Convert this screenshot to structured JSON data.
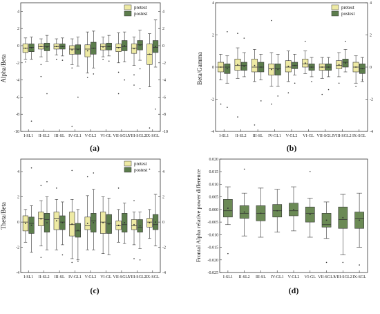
{
  "colors": {
    "pretest": "#eeeaa4",
    "postest": "#5c7d4c",
    "single": "#6b8a55",
    "frame": "#333333",
    "median": "#333333"
  },
  "chart_data": [
    {
      "type": "box",
      "panel_label": "(a)",
      "ylabel": "Alpha/Beta",
      "ylim": [
        -10,
        5
      ],
      "yticks": [
        4,
        2,
        0,
        -2,
        -4,
        -6,
        -8,
        -10
      ],
      "right_axis": true,
      "legend": [
        "pretest",
        "postest"
      ],
      "categories": [
        "I-SL1",
        "II-SL2",
        "III-SL",
        "IV-GL1",
        "V-GL2",
        "VI-GL",
        "VII-SGL1",
        "VIII-SGL2",
        "IX-SGL"
      ],
      "series": [
        {
          "name": "pretest",
          "boxes": [
            {
              "lo": -1.6,
              "q1": -0.8,
              "med": -0.3,
              "q3": 0.2,
              "hi": 0.9,
              "out": [
                -1.9
              ]
            },
            {
              "lo": -1.3,
              "q1": -0.4,
              "med": -0.1,
              "q3": 0.2,
              "hi": 0.8,
              "out": [
                -2.2,
                -3.6
              ]
            },
            {
              "lo": -1.1,
              "q1": -0.4,
              "med": -0.1,
              "q3": 0.2,
              "hi": 0.8,
              "out": [
                -1.6
              ]
            },
            {
              "lo": -2.2,
              "q1": -1.0,
              "med": -0.4,
              "q3": 0.0,
              "hi": 0.8,
              "out": [
                -2.6,
                -9.4
              ]
            },
            {
              "lo": -3.2,
              "q1": -1.3,
              "med": -0.4,
              "q3": 0.1,
              "hi": 1.6,
              "out": [
                -3.7
              ]
            },
            {
              "lo": -1.3,
              "q1": -0.5,
              "med": -0.1,
              "q3": 0.2,
              "hi": 1.0,
              "out": [
                -1.6
              ]
            },
            {
              "lo": -2.0,
              "q1": -0.7,
              "med": -0.2,
              "q3": 0.2,
              "hi": 1.5,
              "out": [
                -3.1,
                -5.6
              ]
            },
            {
              "lo": -2.3,
              "q1": -0.9,
              "med": -0.3,
              "q3": 0.2,
              "hi": 1.0,
              "out": [
                -3.4,
                -4.6
              ]
            },
            {
              "lo": -4.8,
              "q1": -2.2,
              "med": -1.0,
              "q3": 0.2,
              "hi": 1.4,
              "out": [
                -9.6
              ]
            }
          ]
        },
        {
          "name": "postest",
          "boxes": [
            {
              "lo": -1.6,
              "q1": -0.7,
              "med": -0.2,
              "q3": 0.2,
              "hi": 1.0,
              "out": [
                -8.8
              ]
            },
            {
              "lo": -1.8,
              "q1": -0.6,
              "med": -0.1,
              "q3": 0.3,
              "hi": 1.2,
              "out": [
                -5.6
              ]
            },
            {
              "lo": -1.2,
              "q1": -0.4,
              "med": -0.1,
              "q3": 0.2,
              "hi": 0.9,
              "out": [
                -1.7
              ]
            },
            {
              "lo": -2.4,
              "q1": -1.0,
              "med": -0.4,
              "q3": 0.1,
              "hi": 1.0,
              "out": [
                -6.0
              ]
            },
            {
              "lo": -2.6,
              "q1": -1.0,
              "med": -0.3,
              "q3": 0.4,
              "hi": 1.7,
              "out": [
                -3.3
              ]
            },
            {
              "lo": -1.2,
              "q1": -0.5,
              "med": -0.1,
              "q3": 0.3,
              "hi": 1.2,
              "out": [
                -1.8
              ]
            },
            {
              "lo": -1.9,
              "q1": -0.6,
              "med": -0.1,
              "q3": 0.6,
              "hi": 1.6,
              "out": [
                -4.0
              ]
            },
            {
              "lo": -1.7,
              "q1": -0.5,
              "med": 0.1,
              "q3": 0.6,
              "hi": 1.8,
              "out": [
                -2.7,
                -5.0
              ]
            },
            {
              "lo": -2.5,
              "q1": -0.8,
              "med": -0.2,
              "q3": 0.6,
              "hi": 3.0,
              "out": [
                -7.4
              ]
            }
          ]
        }
      ]
    },
    {
      "type": "box",
      "panel_label": "(b)",
      "ylabel": "Beta/Gamma",
      "ylim": [
        -4,
        4
      ],
      "yticks": [
        4,
        2,
        0,
        -2,
        -4
      ],
      "right_axis": true,
      "legend": [
        "pretest",
        "postest"
      ],
      "categories": [
        "I-SL1",
        "II-SL2",
        "III-SL",
        "IV-GL1",
        "V-GL2",
        "VI-GL",
        "VII-SGL1",
        "VIII-SGL2",
        "IX-SGL"
      ],
      "series": [
        {
          "name": "pretest",
          "boxes": [
            {
              "lo": -0.8,
              "q1": -0.3,
              "med": 0.0,
              "q3": 0.3,
              "hi": 0.8,
              "out": [
                -2.3
              ]
            },
            {
              "lo": -0.7,
              "q1": -0.2,
              "med": 0.1,
              "q3": 0.5,
              "hi": 1.2,
              "out": [
                2.1,
                -3.1
              ]
            },
            {
              "lo": -0.9,
              "q1": -0.3,
              "med": 0.0,
              "q3": 0.5,
              "hi": 1.1,
              "out": [
                -3.6
              ]
            },
            {
              "lo": -1.2,
              "q1": -0.5,
              "med": -0.1,
              "q3": 0.2,
              "hi": 0.9,
              "out": [
                2.9,
                -2.3
              ]
            },
            {
              "lo": -0.9,
              "q1": -0.3,
              "med": 0.0,
              "q3": 0.4,
              "hi": 1.0,
              "out": [
                -1.6
              ]
            },
            {
              "lo": -0.4,
              "q1": 0.0,
              "med": 0.2,
              "q3": 0.5,
              "hi": 1.0,
              "out": [
                1.6
              ]
            },
            {
              "lo": -0.7,
              "q1": -0.2,
              "med": 0.0,
              "q3": 0.2,
              "hi": 0.6,
              "out": [
                -1.7
              ]
            },
            {
              "lo": -0.6,
              "q1": -0.1,
              "med": 0.1,
              "q3": 0.4,
              "hi": 0.9,
              "out": [
                -1.0
              ]
            },
            {
              "lo": -1.0,
              "q1": -0.3,
              "med": 0.0,
              "q3": 0.3,
              "hi": 0.7,
              "out": [
                -1.2
              ]
            }
          ]
        },
        {
          "name": "postest",
          "boxes": [
            {
              "lo": -1.0,
              "q1": -0.4,
              "med": 0.0,
              "q3": 0.2,
              "hi": 0.7,
              "out": [
                2.2,
                -2.5
              ]
            },
            {
              "lo": -0.6,
              "q1": -0.2,
              "med": 0.1,
              "q3": 0.3,
              "hi": 0.9,
              "out": [
                1.8
              ]
            },
            {
              "lo": -0.8,
              "q1": -0.3,
              "med": 0.0,
              "q3": 0.3,
              "hi": 0.8,
              "out": [
                -2.1
              ]
            },
            {
              "lo": -1.2,
              "q1": -0.5,
              "med": -0.1,
              "q3": 0.2,
              "hi": 0.8,
              "out": [
                -1.8
              ]
            },
            {
              "lo": -0.5,
              "q1": -0.1,
              "med": 0.1,
              "q3": 0.3,
              "hi": 0.8,
              "out": [
                -1.0
              ]
            },
            {
              "lo": -0.6,
              "q1": -0.2,
              "med": 0.0,
              "q3": 0.2,
              "hi": 0.6,
              "out": [
                -0.9
              ]
            },
            {
              "lo": -0.6,
              "q1": -0.2,
              "med": 0.0,
              "q3": 0.2,
              "hi": 0.6,
              "out": [
                -1.4
              ]
            },
            {
              "lo": -0.3,
              "q1": 0.0,
              "med": 0.3,
              "q3": 0.5,
              "hi": 1.1,
              "out": [
                1.6
              ]
            },
            {
              "lo": -0.9,
              "q1": -0.4,
              "med": -0.1,
              "q3": 0.2,
              "hi": 0.6,
              "out": [
                -0.8
              ]
            }
          ]
        }
      ]
    },
    {
      "type": "box",
      "panel_label": "(c)",
      "ylabel": "Theta/Beta",
      "ylim": [
        -4,
        5
      ],
      "yticks": [
        4,
        2,
        0,
        -2,
        -4
      ],
      "right_axis": true,
      "legend": [
        "pretest",
        "postest"
      ],
      "categories": [
        "I-SL1",
        "II-SL2",
        "III-SL",
        "IV-GL1",
        "V-GL2",
        "VI-GL",
        "VII-SGL1",
        "VIII-SGL2",
        "IX-SGL"
      ],
      "series": [
        {
          "name": "pretest",
          "boxes": [
            {
              "lo": -1.6,
              "q1": -0.7,
              "med": 0.0,
              "q3": 0.5,
              "hi": 1.0,
              "out": []
            },
            {
              "lo": -1.9,
              "q1": -0.3,
              "med": 0.3,
              "q3": 0.8,
              "hi": 1.7,
              "out": [
                2.9,
                -2.8
              ]
            },
            {
              "lo": -2.2,
              "q1": -0.6,
              "med": 0.3,
              "q3": 0.8,
              "hi": 1.8,
              "out": [
                2.7
              ]
            },
            {
              "lo": -2.9,
              "q1": -1.1,
              "med": -0.2,
              "q3": 0.8,
              "hi": 1.8,
              "out": [
                4.1,
                -3.2
              ]
            },
            {
              "lo": -2.2,
              "q1": -0.6,
              "med": -0.3,
              "q3": 0.4,
              "hi": 2.1,
              "out": [
                3.6
              ]
            },
            {
              "lo": -2.5,
              "q1": -0.9,
              "med": 0.0,
              "q3": 0.8,
              "hi": 2.0,
              "out": []
            },
            {
              "lo": -1.6,
              "q1": -0.6,
              "med": -0.3,
              "q3": 0.1,
              "hi": 1.0,
              "out": [
                2.7
              ]
            },
            {
              "lo": -1.8,
              "q1": -0.6,
              "med": -0.3,
              "q3": 0.2,
              "hi": 0.8,
              "out": [
                1.7,
                -2.9
              ]
            },
            {
              "lo": -1.3,
              "q1": -0.4,
              "med": 0.0,
              "q3": 0.3,
              "hi": 1.0,
              "out": [
                4.2
              ]
            }
          ]
        },
        {
          "name": "postest",
          "boxes": [
            {
              "lo": -2.4,
              "q1": -0.9,
              "med": -0.1,
              "q3": 0.4,
              "hi": 1.3,
              "out": [
                4.3
              ]
            },
            {
              "lo": -2.2,
              "q1": -0.8,
              "med": 0.2,
              "q3": 0.7,
              "hi": 2.0,
              "out": [
                3.2
              ]
            },
            {
              "lo": -1.8,
              "q1": -0.6,
              "med": 0.0,
              "q3": 0.5,
              "hi": 1.6,
              "out": [
                -2.6
              ]
            },
            {
              "lo": -3.0,
              "q1": -1.2,
              "med": -0.7,
              "q3": -0.1,
              "hi": 1.0,
              "out": [
                -3.1
              ]
            },
            {
              "lo": -2.2,
              "q1": -0.8,
              "med": 0.1,
              "q3": 0.7,
              "hi": 2.6,
              "out": [
                3.9
              ]
            },
            {
              "lo": -2.6,
              "q1": -0.9,
              "med": -0.1,
              "q3": 0.6,
              "hi": 1.9,
              "out": []
            },
            {
              "lo": -1.7,
              "q1": -0.8,
              "med": -0.2,
              "q3": 0.7,
              "hi": 1.5,
              "out": []
            },
            {
              "lo": -2.1,
              "q1": -0.8,
              "med": -0.4,
              "q3": 0.2,
              "hi": 0.8,
              "out": [
                -3.0
              ]
            },
            {
              "lo": -1.9,
              "q1": -0.6,
              "med": -0.2,
              "q3": 0.6,
              "hi": 2.2,
              "out": []
            }
          ]
        }
      ]
    },
    {
      "type": "box",
      "panel_label": "(d)",
      "ylabel": "Frontal Alpha relative power difference",
      "ylim": [
        -0.025,
        0.02
      ],
      "yticks": [
        0.02,
        0.015,
        0.01,
        0.005,
        0.0,
        -0.005,
        -0.01,
        -0.015,
        -0.02,
        -0.025
      ],
      "ytick_labels": [
        "0.020",
        "0.015",
        "0.010",
        "0.005",
        "0.000",
        "-0.005",
        "-0.010",
        "-0.015",
        "-0.020",
        "-0.025"
      ],
      "right_axis": false,
      "categories": [
        "I-SL1",
        "II-SL2",
        "III-SL",
        "IV-GL1",
        "V-GL2",
        "VI-GL",
        "VII-SGL1",
        "VIII-SGL2",
        "IX-SGL"
      ],
      "series": [
        {
          "boxes": [
            {
              "lo": -0.006,
              "q1": -0.003,
              "med": -0.0005,
              "q3": 0.004,
              "hi": 0.009,
              "out": [
                -0.0175
              ]
            },
            {
              "lo": -0.0105,
              "q1": -0.0035,
              "med": -0.0015,
              "q3": 0.0015,
              "hi": 0.0065,
              "out": [
                0.016
              ]
            },
            {
              "lo": -0.011,
              "q1": -0.0045,
              "med": -0.0015,
              "q3": 0.0015,
              "hi": 0.0085,
              "out": []
            },
            {
              "lo": -0.009,
              "q1": -0.003,
              "med": -0.0005,
              "q3": 0.002,
              "hi": 0.008,
              "out": []
            },
            {
              "lo": -0.0085,
              "q1": -0.0025,
              "med": -0.0005,
              "q3": 0.0025,
              "hi": 0.009,
              "out": []
            },
            {
              "lo": -0.011,
              "q1": -0.005,
              "med": -0.0015,
              "q3": 0.001,
              "hi": 0.0045,
              "out": [
                0.015
              ]
            },
            {
              "lo": -0.0115,
              "q1": -0.007,
              "med": -0.006,
              "q3": -0.0015,
              "hi": 0.003,
              "out": [
                -0.021
              ]
            },
            {
              "lo": -0.018,
              "q1": -0.0075,
              "med": -0.004,
              "q3": 0.001,
              "hi": 0.006,
              "out": [
                -0.021
              ]
            },
            {
              "lo": -0.015,
              "q1": -0.0075,
              "med": -0.0035,
              "q3": -0.001,
              "hi": 0.0065,
              "out": [
                -0.022
              ]
            }
          ]
        }
      ]
    }
  ]
}
